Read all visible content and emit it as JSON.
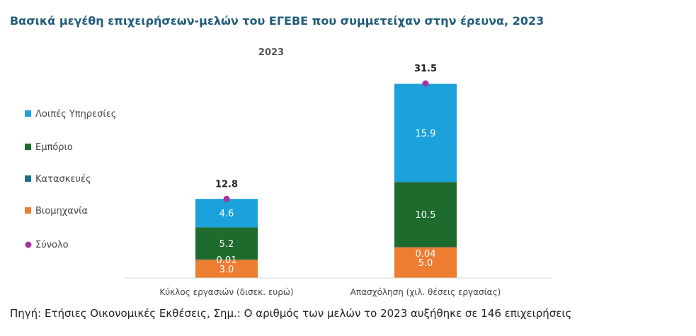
{
  "page": {
    "title": "Βασικά μεγέθη επιχειρήσεων-μελών του ΕΓΕΒΕ που συμμετείχαν στην έρευνα, 2023",
    "footer": "Πηγή: Ετήσιες Οικονομικές Εκθέσεις, Σημ.: Ο αριθμός των μελών το 2023 αυξήθηκε σε 146 επιχειρήσεις"
  },
  "chart_data": {
    "type": "bar",
    "stacked": true,
    "title": "2023",
    "categories": [
      "Κύκλος εργασιών  (δισεκ. ευρώ)",
      "Απασχόληση  (χιλ. θέσεις  εργασίας)"
    ],
    "series": [
      {
        "name": "Βιομηχανία",
        "values": [
          3.0,
          5.0
        ],
        "labels": [
          "3.0",
          "5.0"
        ],
        "color": "#ed7d31"
      },
      {
        "name": "Κατασκευές",
        "values": [
          0.01,
          0.04
        ],
        "labels": [
          "0.01",
          "0.04"
        ],
        "color": "#1f6f8b"
      },
      {
        "name": "Εμπόριο",
        "values": [
          5.2,
          10.5
        ],
        "labels": [
          "5.2",
          "10.5"
        ],
        "color": "#1e6b2e"
      },
      {
        "name": "Λοιπές Υπηρεσίες",
        "values": [
          4.6,
          15.9
        ],
        "labels": [
          "4.6",
          "15.9"
        ],
        "color": "#1ba1dc"
      }
    ],
    "total": {
      "name": "Σύνολο",
      "values": [
        12.8,
        31.5
      ],
      "labels": [
        "12.8",
        "31.5"
      ],
      "color": "#a8359e"
    },
    "legend": [
      "Λοιπές Υπηρεσίες",
      "Εμπόριο",
      "Κατασκευές",
      "Βιομηχανία",
      "Σύνολο"
    ],
    "legend_position": "left",
    "ylim": [
      0,
      31.5
    ],
    "grid": false
  }
}
